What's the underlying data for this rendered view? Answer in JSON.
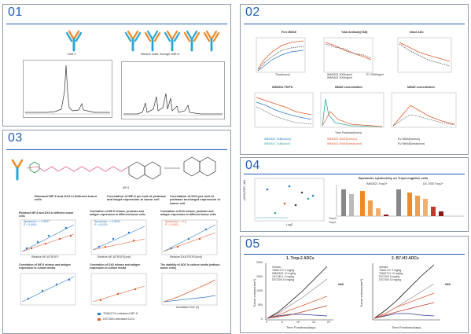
{
  "panels": {
    "p01": {
      "number": "01",
      "left_label": "DAR 4",
      "right_label": "Random linker, Average DAR=4"
    },
    "p02": {
      "number": "02",
      "titles": [
        "Free MMAE",
        "Total Antibody(TAB)",
        "Intact ADC",
        "IMM2621 PK/PD",
        "MMAE concentration",
        "MMAE concentration"
      ],
      "xlabel": "Time(hours)",
      "xlabel2": "Time Postdose(hours)",
      "legend_mid": [
        "IMM2621 3000ng/ml",
        "IMM2621 3000ng/ml",
        "EV 3000ng/ml"
      ],
      "legend_bottom": [
        "IMM2621 TAB(serum)",
        "IMM2621 MMAE(serum)",
        "EV MMAE(serum)",
        "IMM2621 TAB(tumor)",
        "IMM2621 MMAE(intratumor)",
        "EV MMAE(intratumor)"
      ]
    },
    "p03": {
      "number": "03",
      "cap_left": "Released MF-6 and DX4 in different tumor cells",
      "cap_mid": "Correlation of MF-6 per unit of protease and target expression in tumor cell",
      "cap_right": "Correlation of DX4 per unit of protease and target expression in tumor cell",
      "mf_label": "MF-6",
      "sub1": "Released MF-6 and DX4 in different tumor cells",
      "sub2": "Correlation of MF-6 release, protease and antigen expression in different tumor cells",
      "sub3": "Correlation of DX4 release, protease and antigen expression in different tumor cells",
      "sub4": "Correlation of MF-6 release and antigen expression in culture media",
      "sub5": "Correlation of DX4 release and antigen expression in culture media",
      "sub6": "The stability of ADC in culture media (without tumor cells)",
      "legend": [
        "TMA0711-released MF-6",
        "DS7300-released DX4"
      ],
      "stats": [
        "Spearman r = 0.9527",
        "P = 0.0001",
        "Spearman r = 0.8303",
        "P = 0.0231",
        "Spearman r = 0.6",
        "P = 0.0001"
      ],
      "xlab_a": "Relative MF-6/TROP2",
      "xlab_b": "Relative MF-6/TROP2(unit)",
      "xlab_c": "Relative DX4/TROP2(unit)",
      "xlab_d": "Incubation time (h)"
    },
    "p04": {
      "number": "04",
      "bar_title": "Bystander cytotoxicity on Trop2 negative cells",
      "group1": "IMM2621 Trop2+",
      "group2": "DX-7000 Trop2+",
      "ylabel": "pIC50(SCR, uM)",
      "xlabel": "LogD",
      "row_labels": [
        "Trop2+",
        "Trop2-"
      ],
      "x_ticks": [
        "-2",
        "0",
        "2",
        "4"
      ]
    },
    "p05": {
      "number": "05",
      "left_title": "1. Trop-2 ADCs",
      "right_title": "2. B7-H3 ADCs",
      "ylabel": "Tumor volume(mm³)",
      "xlabel": "Time Postdose(days)",
      "y_ticks": [
        "0",
        "500",
        "1000",
        "1500",
        "2000"
      ],
      "x_ticks": [
        "0",
        "5",
        "10",
        "15",
        "20"
      ],
      "legend_left": [
        "Vehicle",
        "TMA0711 3 mg/kg",
        "IMM2621 10 mg/kg",
        "1A7-MCL 3 mg/kg",
        "DS7300 10 mg/kg"
      ],
      "legend_right": [
        "Vehicle",
        "TMA0711 3 mg/kg",
        "TMA0711 10 mg/kg",
        "DS7300 3 mg/kg",
        "DS7300 10 mg/kg"
      ],
      "sig": [
        "***",
        "***"
      ]
    }
  }
}
